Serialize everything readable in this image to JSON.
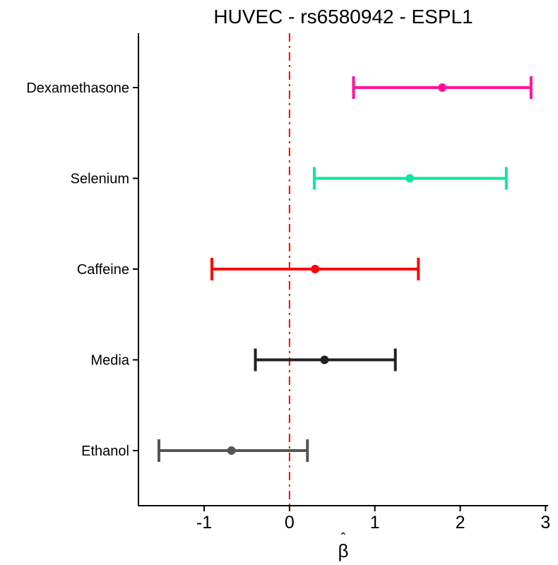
{
  "title": "HUVEC - rs6580942 - ESPL1",
  "chart_data": {
    "type": "scatter",
    "subtype": "forest-plot-with-error-bars",
    "title": "HUVEC - rs6580942 - ESPL1",
    "xlabel": "β̂",
    "xlabel_base": "β",
    "xlabel_accent": "ˆ",
    "ylabel": "",
    "categories": [
      "Dexamethasone",
      "Selenium",
      "Caffeine",
      "Media",
      "Ethanol"
    ],
    "series": [
      {
        "name": "Dexamethasone",
        "estimate": 1.79,
        "ci_low": 0.75,
        "ci_high": 2.83,
        "color": "#FF149B"
      },
      {
        "name": "Selenium",
        "estimate": 1.41,
        "ci_low": 0.29,
        "ci_high": 2.54,
        "color": "#0EE6A0"
      },
      {
        "name": "Caffeine",
        "estimate": 0.3,
        "ci_low": -0.91,
        "ci_high": 1.51,
        "color": "#FF0000"
      },
      {
        "name": "Media",
        "estimate": 0.41,
        "ci_low": -0.4,
        "ci_high": 1.24,
        "color": "#212121"
      },
      {
        "name": "Ethanol",
        "estimate": -0.68,
        "ci_low": -1.53,
        "ci_high": 0.21,
        "color": "#555555"
      }
    ],
    "xticks": [
      -1,
      0,
      1,
      2,
      3
    ],
    "xlim": [
      -1.77,
      3.03
    ],
    "reference_line": {
      "x": 0,
      "color": "#FF0000",
      "line_style": "dash-dot"
    },
    "grid": false,
    "legend": false,
    "axis_color": "#000000",
    "background": "#FFFFFF"
  }
}
